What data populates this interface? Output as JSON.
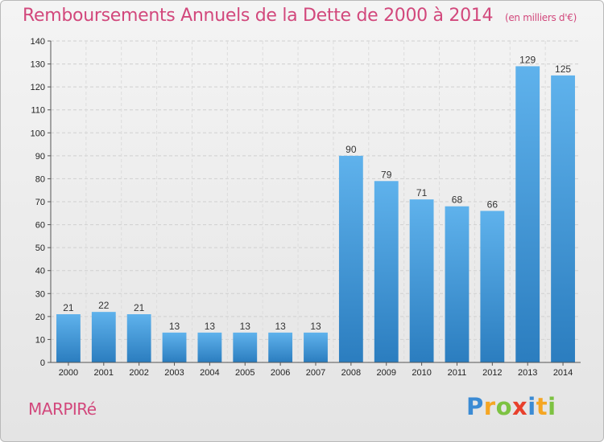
{
  "chart_data": {
    "type": "bar",
    "title": "Remboursements Annuels de la Dette de 2000 à 2014",
    "unit": "(en milliers d'€)",
    "categories": [
      "2000",
      "2001",
      "2002",
      "2003",
      "2004",
      "2005",
      "2006",
      "2007",
      "2008",
      "2009",
      "2010",
      "2011",
      "2012",
      "2013",
      "2014"
    ],
    "values": [
      21,
      22,
      21,
      13,
      13,
      13,
      13,
      13,
      90,
      79,
      71,
      68,
      66,
      129,
      125
    ],
    "ylim": [
      0,
      140
    ],
    "yticks": [
      0,
      10,
      20,
      30,
      40,
      50,
      60,
      70,
      80,
      90,
      100,
      110,
      120,
      130,
      140
    ],
    "grid": true,
    "bar_color_top": "#5fb2ec",
    "bar_color_bottom": "#2b7dbf"
  },
  "location": "MARPIRé",
  "logo": {
    "letters": [
      "P",
      "r",
      "o",
      "x",
      "i",
      "t",
      "i"
    ],
    "colors": [
      "#3b8bd4",
      "#f5a623",
      "#7dc242",
      "#e8402c",
      "#3b8bd4",
      "#f5a623",
      "#7dc242"
    ]
  }
}
